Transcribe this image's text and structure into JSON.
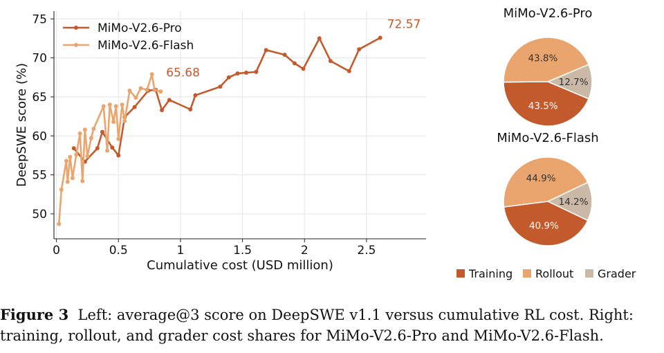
{
  "colors": {
    "pro": "#C35A2C",
    "flash": "#EAA56E",
    "training": "#C35A2C",
    "rollout": "#EAA56E",
    "grader": "#C9B9A6",
    "grid": "#e6e6e6",
    "axis": "#222222"
  },
  "caption": {
    "label": "Figure 3",
    "text": "Left: average@3 score on DeepSWE v1.1 versus cumulative RL cost. Right: training, rollout, and grader cost shares for MiMo-V2.6-Pro and MiMo-V2.6-Flash."
  },
  "chart_data": [
    {
      "type": "line",
      "title": "",
      "xlabel": "Cumulative cost (USD million)",
      "ylabel": "DeepSWE score (%)",
      "xlim": [
        -0.02,
        2.98
      ],
      "ylim": [
        46.8,
        76.0
      ],
      "xticks": [
        0,
        0.5,
        1,
        1.5,
        2,
        2.5
      ],
      "xtick_labels": [
        "0",
        "0.5",
        "1",
        "1.5",
        "2",
        "2.5"
      ],
      "yticks": [
        50,
        55,
        60,
        65,
        70,
        75
      ],
      "ytick_labels": [
        "50",
        "55",
        "60",
        "65",
        "70",
        "75"
      ],
      "grid": true,
      "legend": "top-left",
      "series": [
        {
          "name": "MiMo-V2.6-Pro",
          "color": "pro",
          "end_label": "72.57",
          "points": [
            [
              0.14,
              58.4
            ],
            [
              0.23,
              56.7
            ],
            [
              0.33,
              58.4
            ],
            [
              0.37,
              60.5
            ],
            [
              0.45,
              58.5
            ],
            [
              0.5,
              57.5
            ],
            [
              0.55,
              62.4
            ],
            [
              0.63,
              63.7
            ],
            [
              0.74,
              65.8
            ],
            [
              0.8,
              65.9
            ],
            [
              0.85,
              63.3
            ],
            [
              0.91,
              64.6
            ],
            [
              1.08,
              63.4
            ],
            [
              1.12,
              65.2
            ],
            [
              1.32,
              66.3
            ],
            [
              1.39,
              67.5
            ],
            [
              1.46,
              68.0
            ],
            [
              1.53,
              68.1
            ],
            [
              1.61,
              68.2
            ],
            [
              1.69,
              71.0
            ],
            [
              1.84,
              70.4
            ],
            [
              1.92,
              69.3
            ],
            [
              1.99,
              68.6
            ],
            [
              2.12,
              72.5
            ],
            [
              2.21,
              69.6
            ],
            [
              2.36,
              68.3
            ],
            [
              2.44,
              71.1
            ],
            [
              2.61,
              72.57
            ]
          ]
        },
        {
          "name": "MiMo-V2.6-Flash",
          "color": "flash",
          "end_label": "65.68",
          "points": [
            [
              0.02,
              48.7
            ],
            [
              0.04,
              53.1
            ],
            [
              0.08,
              56.8
            ],
            [
              0.09,
              54.1
            ],
            [
              0.11,
              57.3
            ],
            [
              0.13,
              54.6
            ],
            [
              0.16,
              57.6
            ],
            [
              0.19,
              60.3
            ],
            [
              0.21,
              54.2
            ],
            [
              0.23,
              60.8
            ],
            [
              0.25,
              57.4
            ],
            [
              0.28,
              59.7
            ],
            [
              0.3,
              60.9
            ],
            [
              0.38,
              63.8
            ],
            [
              0.41,
              58.1
            ],
            [
              0.43,
              64.0
            ],
            [
              0.46,
              61.8
            ],
            [
              0.48,
              63.8
            ],
            [
              0.5,
              59.6
            ],
            [
              0.53,
              64.0
            ],
            [
              0.55,
              61.9
            ],
            [
              0.59,
              65.8
            ],
            [
              0.64,
              64.9
            ],
            [
              0.68,
              66.1
            ],
            [
              0.73,
              65.9
            ],
            [
              0.77,
              67.9
            ],
            [
              0.79,
              65.9
            ],
            [
              0.84,
              65.68
            ]
          ]
        }
      ]
    },
    {
      "type": "pie",
      "title": "MiMo-V2.6-Pro",
      "slices": [
        {
          "label": "Training",
          "value": 43.5,
          "text": "43.5%",
          "color": "training"
        },
        {
          "label": "Rollout",
          "value": 43.8,
          "text": "43.8%",
          "color": "rollout"
        },
        {
          "label": "Grader",
          "value": 12.7,
          "text": "12.7%",
          "color": "grader"
        }
      ]
    },
    {
      "type": "pie",
      "title": "MiMo-V2.6-Flash",
      "slices": [
        {
          "label": "Training",
          "value": 40.9,
          "text": "40.9%",
          "color": "training"
        },
        {
          "label": "Rollout",
          "value": 44.9,
          "text": "44.9%",
          "color": "rollout"
        },
        {
          "label": "Grader",
          "value": 14.2,
          "text": "14.2%",
          "color": "grader"
        }
      ]
    }
  ],
  "pie_legend": [
    {
      "label": "Training",
      "color": "training"
    },
    {
      "label": "Rollout",
      "color": "rollout"
    },
    {
      "label": "Grader",
      "color": "grader"
    }
  ]
}
